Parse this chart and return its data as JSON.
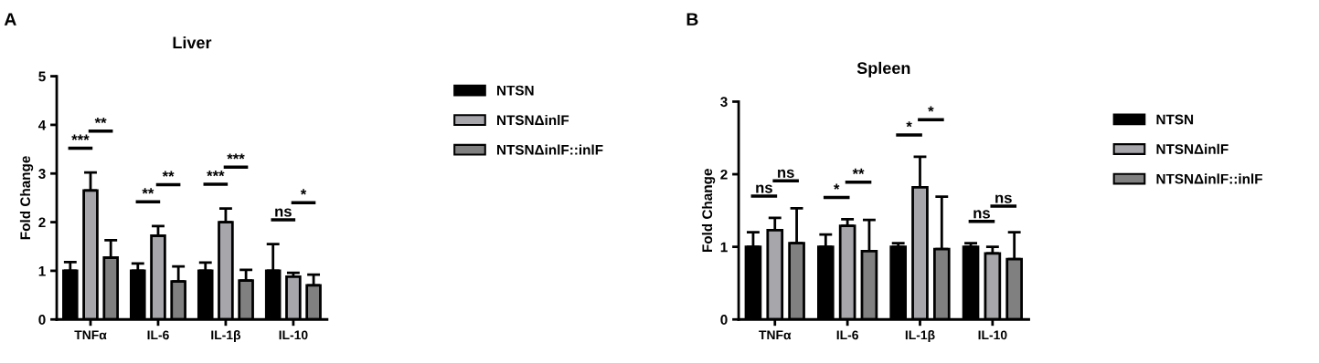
{
  "chart_data": [
    {
      "type": "bar",
      "title": "Liver",
      "ylabel": "Fold Change",
      "categories": [
        "TNFα",
        "IL-6",
        "IL-1β",
        "IL-10"
      ],
      "series": [
        {
          "name": "NTSN",
          "color": "#000000",
          "values": [
            1,
            1,
            1,
            1
          ],
          "errors": [
            [
              1,
              1.18
            ],
            [
              1,
              1.15
            ],
            [
              1,
              1.17
            ],
            [
              1,
              1.55
            ]
          ]
        },
        {
          "name": "NTSNΔinlF",
          "color": "#a6a6ab",
          "values": [
            2.65,
            1.72,
            2.0,
            0.88
          ],
          "errors": [
            [
              2.65,
              3.02
            ],
            [
              1.72,
              1.92
            ],
            [
              2.0,
              2.28
            ],
            [
              0.88,
              0.96
            ]
          ]
        },
        {
          "name": "NTSNΔinlF::inlF",
          "color": "#808080",
          "values": [
            1.27,
            0.78,
            0.8,
            0.7
          ],
          "errors": [
            [
              1.27,
              1.63
            ],
            [
              0.78,
              1.09
            ],
            [
              0.8,
              1.02
            ],
            [
              0.7,
              0.92
            ]
          ]
        }
      ],
      "ylim": [
        0,
        5
      ],
      "yticks": [
        0,
        1,
        2,
        3,
        4,
        5
      ],
      "legend": "right",
      "grid": false,
      "annotations": [
        "A",
        "***",
        "**",
        "**",
        "**",
        "***",
        "***",
        "ns",
        "*"
      ]
    },
    {
      "type": "bar",
      "title": "Spleen",
      "ylabel": "Fold Change",
      "categories": [
        "TNFα",
        "IL-6",
        "IL-1β",
        "IL-10"
      ],
      "series": [
        {
          "name": "NTSN",
          "color": "#000000",
          "values": [
            1,
            1,
            1,
            1
          ],
          "errors": [
            [
              1,
              1.2
            ],
            [
              1,
              1.17
            ],
            [
              1,
              1.05
            ],
            [
              1,
              1.05
            ]
          ]
        },
        {
          "name": "NTSNΔinlF",
          "color": "#a6a6ab",
          "values": [
            1.23,
            1.29,
            1.82,
            0.91
          ],
          "errors": [
            [
              1.23,
              1.4
            ],
            [
              1.29,
              1.38
            ],
            [
              1.82,
              2.24
            ],
            [
              0.91,
              1.0
            ]
          ]
        },
        {
          "name": "NTSNΔinlF::inlF",
          "color": "#808080",
          "values": [
            1.05,
            0.94,
            0.97,
            0.83
          ],
          "errors": [
            [
              1.05,
              1.53
            ],
            [
              0.94,
              1.37
            ],
            [
              0.97,
              1.69
            ],
            [
              0.83,
              1.2
            ]
          ]
        }
      ],
      "ylim": [
        0,
        3
      ],
      "yticks": [
        0,
        1,
        2,
        3
      ],
      "legend": "right",
      "grid": false,
      "annotations": [
        "B",
        "ns",
        "ns",
        "*",
        "**",
        "*",
        "*",
        "ns",
        "ns"
      ]
    }
  ]
}
